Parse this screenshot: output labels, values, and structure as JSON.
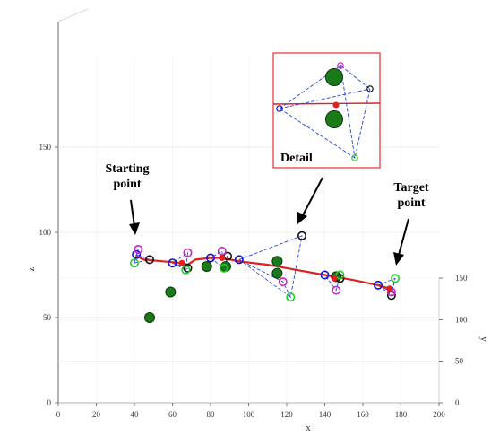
{
  "chart_data": {
    "type": "scatter",
    "title": "",
    "xlabel": "x",
    "ylabel": "y",
    "zlabel": "z",
    "xlim": [
      0,
      200
    ],
    "zlim": [
      0,
      160
    ],
    "ylim": [
      0,
      150
    ],
    "x_ticks": [
      "0",
      "20",
      "40",
      "60",
      "80",
      "100",
      "120",
      "140",
      "160",
      "180",
      "200"
    ],
    "z_ticks": [
      "0",
      "50",
      "100",
      "150"
    ],
    "y_ticks": [
      "0",
      "50",
      "100",
      "150"
    ],
    "grid": true,
    "colors": {
      "path": "#e02020",
      "start_node": "#1010cc",
      "end_node": "#111111",
      "node_a": "#cc22cc",
      "node_b": "#22cc22",
      "obstacle": "#1a7a1a",
      "connector": "#2244dd",
      "detail_frame": "#e83030"
    },
    "obstacles": [
      {
        "x": 48,
        "z": 50
      },
      {
        "x": 59,
        "z": 65
      },
      {
        "x": 78,
        "z": 80
      },
      {
        "x": 88,
        "z": 80
      },
      {
        "x": 115,
        "z": 83
      },
      {
        "x": 115,
        "z": 76
      },
      {
        "x": 146,
        "z": 74
      }
    ],
    "path": [
      {
        "x": 41,
        "z": 86
      },
      {
        "x": 45,
        "z": 84
      },
      {
        "x": 55,
        "z": 83
      },
      {
        "x": 65,
        "z": 82
      },
      {
        "x": 68,
        "z": 81
      },
      {
        "x": 72,
        "z": 84
      },
      {
        "x": 80,
        "z": 85
      },
      {
        "x": 86,
        "z": 85
      },
      {
        "x": 95,
        "z": 83
      },
      {
        "x": 110,
        "z": 81
      },
      {
        "x": 125,
        "z": 78
      },
      {
        "x": 140,
        "z": 75
      },
      {
        "x": 155,
        "z": 72
      },
      {
        "x": 168,
        "z": 69
      },
      {
        "x": 174,
        "z": 67
      },
      {
        "x": 176,
        "z": 65
      }
    ],
    "waypoints": [
      {
        "x": 65,
        "z": 82
      },
      {
        "x": 86,
        "z": 85
      },
      {
        "x": 145,
        "z": 73
      },
      {
        "x": 174,
        "z": 67
      }
    ],
    "node_groups": [
      {
        "blue": {
          "x": 41,
          "z": 87
        },
        "black": {
          "x": 48,
          "z": 84
        },
        "magenta": {
          "x": 42,
          "z": 90
        },
        "green": {
          "x": 40,
          "z": 82
        }
      },
      {
        "blue": {
          "x": 60,
          "z": 82
        },
        "black": {
          "x": 68,
          "z": 79
        },
        "magenta": {
          "x": 68,
          "z": 88
        },
        "green": {
          "x": 67,
          "z": 78
        }
      },
      {
        "blue": {
          "x": 80,
          "z": 85
        },
        "black": {
          "x": 89,
          "z": 86
        },
        "magenta": {
          "x": 86,
          "z": 89
        },
        "green": {
          "x": 87,
          "z": 79
        }
      },
      {
        "blue": {
          "x": 95,
          "z": 84
        },
        "black": {
          "x": 128,
          "z": 98
        },
        "magenta": {
          "x": 118,
          "z": 71
        },
        "green": {
          "x": 122,
          "z": 62
        }
      },
      {
        "blue": {
          "x": 140,
          "z": 75
        },
        "black": {
          "x": 148,
          "z": 73
        },
        "magenta": {
          "x": 146,
          "z": 66
        },
        "green": {
          "x": 148,
          "z": 75
        }
      },
      {
        "blue": {
          "x": 168,
          "z": 69
        },
        "black": {
          "x": 175,
          "z": 63
        },
        "magenta": {
          "x": 175,
          "z": 65
        },
        "green": {
          "x": 177,
          "z": 73
        }
      }
    ]
  },
  "annotations": {
    "start": [
      "Starting",
      "point"
    ],
    "target": [
      "Target",
      "point"
    ],
    "detail": "Detail"
  }
}
